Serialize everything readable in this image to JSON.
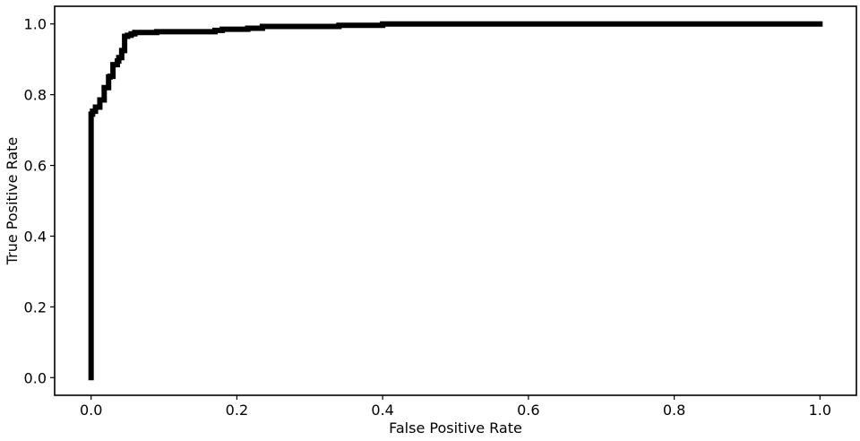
{
  "chart_data": {
    "type": "line",
    "title": "",
    "xlabel": "False Positive Rate",
    "ylabel": "True Positive Rate",
    "xlim": [
      -0.05,
      1.05
    ],
    "ylim": [
      -0.05,
      1.05
    ],
    "x_ticks": [
      0.0,
      0.2,
      0.4,
      0.6,
      0.8,
      1.0
    ],
    "y_ticks": [
      0.0,
      0.2,
      0.4,
      0.6,
      0.8,
      1.0
    ],
    "x_tick_labels": [
      "0.0",
      "0.2",
      "0.4",
      "0.6",
      "0.8",
      "1.0"
    ],
    "y_tick_labels": [
      "0.0",
      "0.2",
      "0.4",
      "0.6",
      "0.8",
      "1.0"
    ],
    "grid": false,
    "legend": "none",
    "line_color": "#000000",
    "series": [
      {
        "x": [
          0.0,
          0.0,
          0.002,
          0.002,
          0.006,
          0.006,
          0.012,
          0.012,
          0.018,
          0.018,
          0.024,
          0.024,
          0.026,
          0.026,
          0.03,
          0.03,
          0.036,
          0.036,
          0.038,
          0.038,
          0.042,
          0.042,
          0.046,
          0.046,
          0.05,
          0.05,
          0.055,
          0.055,
          0.06,
          0.06,
          0.09,
          0.09,
          0.17,
          0.17,
          0.18,
          0.18,
          0.215,
          0.215,
          0.235,
          0.235,
          0.34,
          0.34,
          0.4,
          0.4,
          1.0
        ],
        "y": [
          0.0,
          0.745,
          0.745,
          0.753,
          0.753,
          0.765,
          0.765,
          0.785,
          0.785,
          0.82,
          0.82,
          0.85,
          0.85,
          0.852,
          0.852,
          0.885,
          0.885,
          0.895,
          0.895,
          0.905,
          0.905,
          0.925,
          0.925,
          0.965,
          0.965,
          0.968,
          0.968,
          0.972,
          0.972,
          0.976,
          0.976,
          0.978,
          0.978,
          0.982,
          0.982,
          0.985,
          0.985,
          0.988,
          0.988,
          0.993,
          0.993,
          0.996,
          0.996,
          1.0,
          1.0
        ]
      }
    ]
  }
}
